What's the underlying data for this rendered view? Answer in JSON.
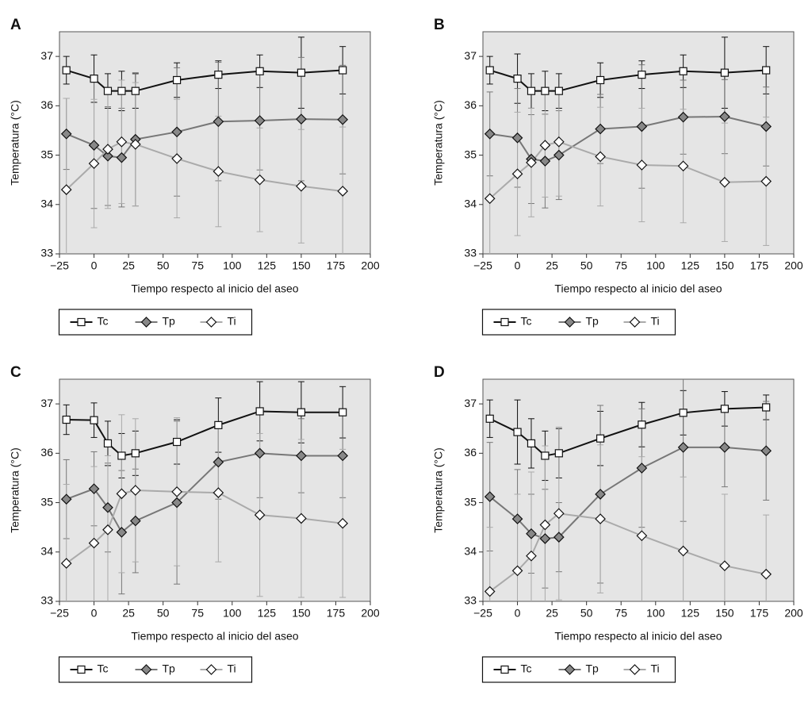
{
  "chart_data": [
    {
      "type": "line",
      "label": "A",
      "xlabel": "Tiempo respecto al inicio del aseo",
      "ylabel": "Temperatura (°C)",
      "x": [
        -20,
        0,
        10,
        20,
        30,
        60,
        90,
        120,
        150,
        180
      ],
      "xlim": [
        -25,
        200
      ],
      "ylim": [
        33,
        37.5
      ],
      "xticks": [
        {
          "value": -25,
          "label": "−25"
        },
        0,
        25,
        50,
        75,
        100,
        125,
        150,
        175,
        200
      ],
      "yticks": [
        33,
        34,
        35,
        36,
        37
      ],
      "plot_background": "#e5e5e5",
      "legend": "bottom",
      "series": [
        {
          "name": "Tc",
          "color": "#111111",
          "marker": "square",
          "marker_fill": "#ffffff",
          "values": [
            36.72,
            36.55,
            36.3,
            36.3,
            36.3,
            36.52,
            36.63,
            36.7,
            36.67,
            36.72
          ],
          "errors": [
            0.28,
            0.48,
            0.35,
            0.4,
            0.35,
            0.35,
            0.28,
            0.33,
            0.72,
            0.48
          ]
        },
        {
          "name": "Tp",
          "color": "#777777",
          "marker": "diamond",
          "marker_fill": "#888888",
          "values": [
            35.43,
            35.2,
            34.98,
            34.95,
            35.32,
            35.47,
            35.68,
            35.7,
            35.73,
            35.72
          ],
          "errors": [
            0.72,
            1.28,
            1.0,
            1.0,
            1.35,
            1.3,
            1.2,
            1.0,
            1.25,
            1.1
          ]
        },
        {
          "name": "Ti",
          "color": "#aaaaaa",
          "marker": "diamond",
          "marker_fill": "#ffffff",
          "values": [
            34.3,
            34.83,
            35.12,
            35.27,
            35.22,
            34.93,
            34.67,
            34.5,
            34.37,
            34.27
          ],
          "errors": [
            1.85,
            1.3,
            1.2,
            1.25,
            1.25,
            1.2,
            1.12,
            1.05,
            1.15,
            1.3
          ]
        }
      ]
    },
    {
      "type": "line",
      "label": "B",
      "xlabel": "Tiempo respecto al inicio del aseo",
      "ylabel": "Temperatura (°C)",
      "x": [
        -20,
        0,
        10,
        20,
        30,
        60,
        90,
        120,
        150,
        180
      ],
      "xlim": [
        -25,
        200
      ],
      "ylim": [
        33,
        37.5
      ],
      "xticks": [
        {
          "value": -25,
          "label": "−25"
        },
        0,
        25,
        50,
        75,
        100,
        125,
        150,
        175,
        200
      ],
      "yticks": [
        33,
        34,
        35,
        36,
        37
      ],
      "plot_background": "#e5e5e5",
      "legend": "bottom",
      "series": [
        {
          "name": "Tc",
          "color": "#111111",
          "marker": "square",
          "marker_fill": "#ffffff",
          "values": [
            36.72,
            36.55,
            36.3,
            36.3,
            36.3,
            36.52,
            36.63,
            36.7,
            36.67,
            36.72
          ],
          "errors": [
            0.28,
            0.5,
            0.35,
            0.4,
            0.35,
            0.35,
            0.28,
            0.33,
            0.72,
            0.48
          ]
        },
        {
          "name": "Tp",
          "color": "#777777",
          "marker": "diamond",
          "marker_fill": "#888888",
          "values": [
            35.43,
            35.35,
            34.92,
            34.88,
            35.0,
            35.53,
            35.58,
            35.77,
            35.78,
            35.58
          ],
          "errors": [
            0.85,
            1.0,
            0.9,
            0.95,
            0.9,
            0.7,
            1.25,
            0.75,
            0.75,
            0.8
          ]
        },
        {
          "name": "Ti",
          "color": "#aaaaaa",
          "marker": "diamond",
          "marker_fill": "#ffffff",
          "values": [
            34.12,
            34.62,
            34.85,
            35.2,
            35.27,
            34.97,
            34.8,
            34.78,
            34.45,
            34.47
          ],
          "errors": [
            1.3,
            1.25,
            1.1,
            1.05,
            1.1,
            1.0,
            1.15,
            1.15,
            1.2,
            1.3
          ]
        }
      ]
    },
    {
      "type": "line",
      "label": "C",
      "xlabel": "Tiempo respecto al inicio del aseo",
      "ylabel": "Temperatura (°C)",
      "x": [
        -20,
        0,
        10,
        20,
        30,
        60,
        90,
        120,
        150,
        180
      ],
      "xlim": [
        -25,
        200
      ],
      "ylim": [
        33,
        37.5
      ],
      "xticks": [
        {
          "value": -25,
          "label": "−25"
        },
        0,
        25,
        50,
        75,
        100,
        125,
        150,
        175,
        200
      ],
      "yticks": [
        33,
        34,
        35,
        36,
        37
      ],
      "plot_background": "#e5e5e5",
      "legend": "bottom",
      "series": [
        {
          "name": "Tc",
          "color": "#111111",
          "marker": "square",
          "marker_fill": "#ffffff",
          "values": [
            36.68,
            36.67,
            36.2,
            35.95,
            36.0,
            36.23,
            36.57,
            36.85,
            36.83,
            36.83
          ],
          "errors": [
            0.3,
            0.35,
            0.45,
            0.45,
            0.45,
            0.45,
            0.55,
            0.6,
            0.62,
            0.52
          ]
        },
        {
          "name": "Tp",
          "color": "#777777",
          "marker": "diamond",
          "marker_fill": "#888888",
          "values": [
            35.07,
            35.28,
            34.9,
            34.4,
            34.63,
            35.0,
            35.82,
            36.0,
            35.95,
            35.95
          ],
          "errors": [
            0.8,
            0.75,
            0.9,
            1.25,
            1.05,
            1.65,
            0.75,
            0.9,
            0.75,
            0.85
          ]
        },
        {
          "name": "Ti",
          "color": "#aaaaaa",
          "marker": "diamond",
          "marker_fill": "#ffffff",
          "values": [
            33.77,
            34.18,
            34.45,
            35.18,
            35.25,
            35.22,
            35.2,
            34.75,
            34.68,
            34.58
          ],
          "errors": [
            1.6,
            1.55,
            1.5,
            1.6,
            1.45,
            1.5,
            1.4,
            1.65,
            1.6,
            1.5
          ]
        }
      ]
    },
    {
      "type": "line",
      "label": "D",
      "xlabel": "Tiempo respecto al inicio del aseo",
      "ylabel": "Temperatura (°C)",
      "x": [
        -20,
        0,
        10,
        20,
        30,
        60,
        90,
        120,
        150,
        180
      ],
      "xlim": [
        -25,
        200
      ],
      "ylim": [
        33,
        37.5
      ],
      "xticks": [
        {
          "value": -25,
          "label": "−25"
        },
        0,
        25,
        50,
        75,
        100,
        125,
        150,
        175,
        200
      ],
      "yticks": [
        33,
        34,
        35,
        36,
        37
      ],
      "plot_background": "#e5e5e5",
      "legend": "bottom",
      "series": [
        {
          "name": "Tc",
          "color": "#111111",
          "marker": "square",
          "marker_fill": "#ffffff",
          "values": [
            36.7,
            36.43,
            36.2,
            35.95,
            36.0,
            36.3,
            36.58,
            36.82,
            36.9,
            36.93
          ],
          "errors": [
            0.38,
            0.65,
            0.5,
            0.5,
            0.5,
            0.55,
            0.45,
            0.45,
            0.35,
            0.25
          ]
        },
        {
          "name": "Tp",
          "color": "#777777",
          "marker": "diamond",
          "marker_fill": "#888888",
          "values": [
            35.12,
            34.67,
            34.37,
            34.27,
            34.3,
            35.17,
            35.7,
            36.12,
            36.12,
            36.05
          ],
          "errors": [
            1.1,
            1.0,
            0.8,
            1.0,
            0.7,
            1.8,
            1.2,
            1.5,
            0.8,
            1.0
          ]
        },
        {
          "name": "Ti",
          "color": "#aaaaaa",
          "marker": "diamond",
          "marker_fill": "#ffffff",
          "values": [
            33.2,
            33.62,
            33.92,
            34.55,
            34.78,
            34.67,
            34.33,
            34.02,
            33.72,
            33.55
          ],
          "errors": [
            1.3,
            1.55,
            1.7,
            1.6,
            1.75,
            1.5,
            1.6,
            1.5,
            1.45,
            1.2
          ]
        }
      ]
    }
  ]
}
